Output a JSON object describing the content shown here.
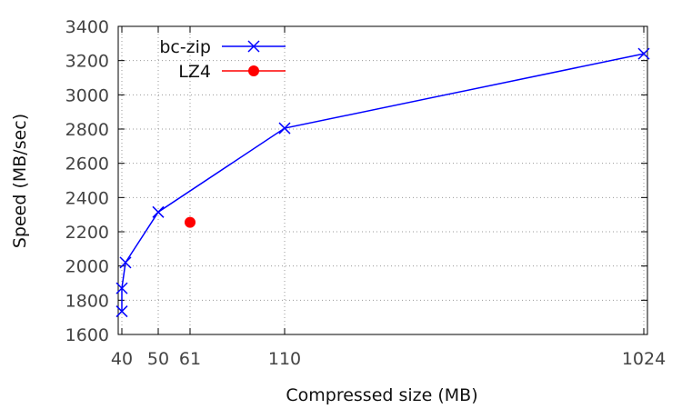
{
  "chart_data": {
    "type": "line",
    "xlabel": "Compressed size (MB)",
    "ylabel": "Speed (MB/sec)",
    "ylim": [
      1600,
      3400
    ],
    "yticks": [
      1600,
      1800,
      2000,
      2200,
      2400,
      2600,
      2800,
      3000,
      3200,
      3400
    ],
    "xticks": [
      40,
      50,
      61,
      110,
      1024
    ],
    "x_scale": "categorical-positions",
    "grid": true,
    "legend_position": "top-left",
    "series": [
      {
        "name": "bc-zip",
        "color": "#0000ff",
        "marker": "cross",
        "line": true,
        "points": [
          {
            "x": 40,
            "y": 1735
          },
          {
            "x": 40,
            "y": 1870
          },
          {
            "x": 41,
            "y": 2020
          },
          {
            "x": 50,
            "y": 2315
          },
          {
            "x": 110,
            "y": 2805
          },
          {
            "x": 1024,
            "y": 3240
          }
        ]
      },
      {
        "name": "LZ4",
        "color": "#ff0000",
        "marker": "circle",
        "line": false,
        "points": [
          {
            "x": 61,
            "y": 2255
          }
        ]
      }
    ]
  }
}
